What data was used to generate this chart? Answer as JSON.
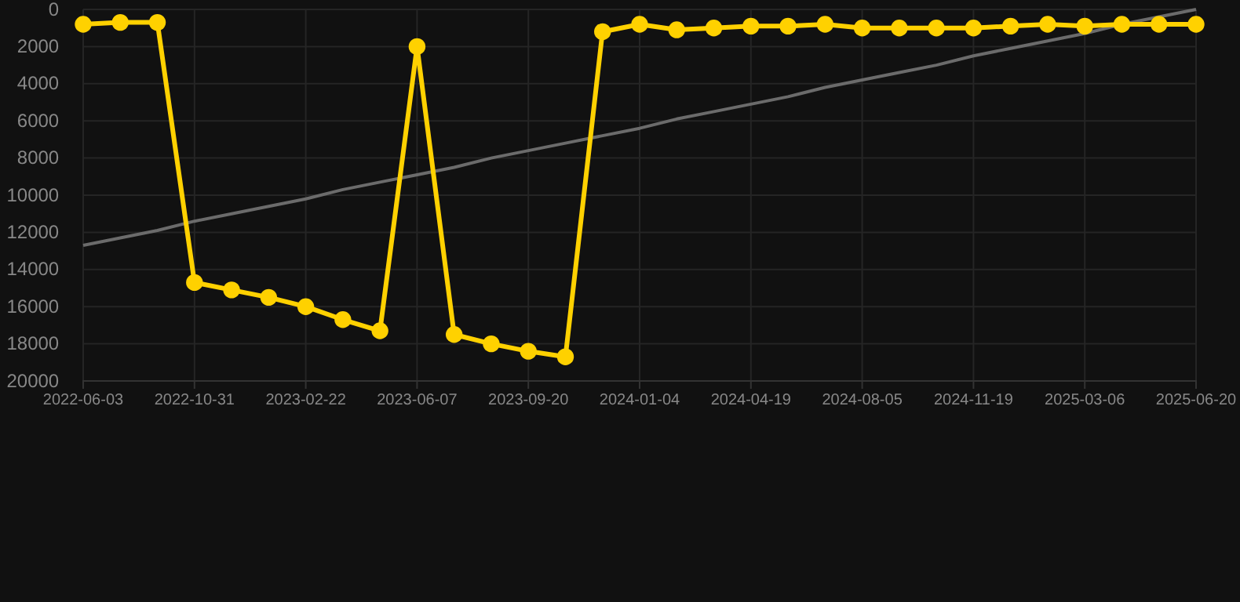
{
  "chart_data": {
    "type": "line",
    "categories": [
      "2022-06-03",
      null,
      null,
      "2022-10-31",
      null,
      null,
      "2023-02-22",
      null,
      null,
      "2023-06-07",
      null,
      null,
      "2023-09-20",
      null,
      null,
      "2024-01-04",
      null,
      null,
      "2024-04-19",
      null,
      null,
      "2024-08-05",
      null,
      null,
      "2024-11-19",
      null,
      null,
      "2025-03-06",
      null,
      null,
      "2025-06-20"
    ],
    "series": [
      {
        "color": "#ffd100",
        "marker": "circle",
        "values": [
          800,
          700,
          700,
          14700,
          15100,
          15500,
          16000,
          16700,
          17300,
          2000,
          17500,
          18000,
          18400,
          18700,
          1200,
          800,
          1100,
          1000,
          900,
          900,
          800,
          1000,
          1000,
          1000,
          1000,
          900,
          800,
          900,
          800,
          800,
          800
        ]
      },
      {
        "color": "#6b6b6b",
        "marker": "none",
        "values": [
          12700,
          12300,
          11900,
          11400,
          11000,
          10600,
          10200,
          9700,
          9300,
          8900,
          8500,
          8000,
          7600,
          7200,
          6800,
          6400,
          5900,
          5500,
          5100,
          4700,
          4200,
          3800,
          3400,
          3000,
          2500,
          2100,
          1700,
          1300,
          800,
          400,
          0
        ]
      }
    ],
    "ylim": [
      20000,
      0
    ],
    "yticks": [
      0,
      2000,
      4000,
      6000,
      8000,
      10000,
      12000,
      14000,
      16000,
      18000,
      20000
    ],
    "grid": true,
    "line_style": "solid"
  }
}
